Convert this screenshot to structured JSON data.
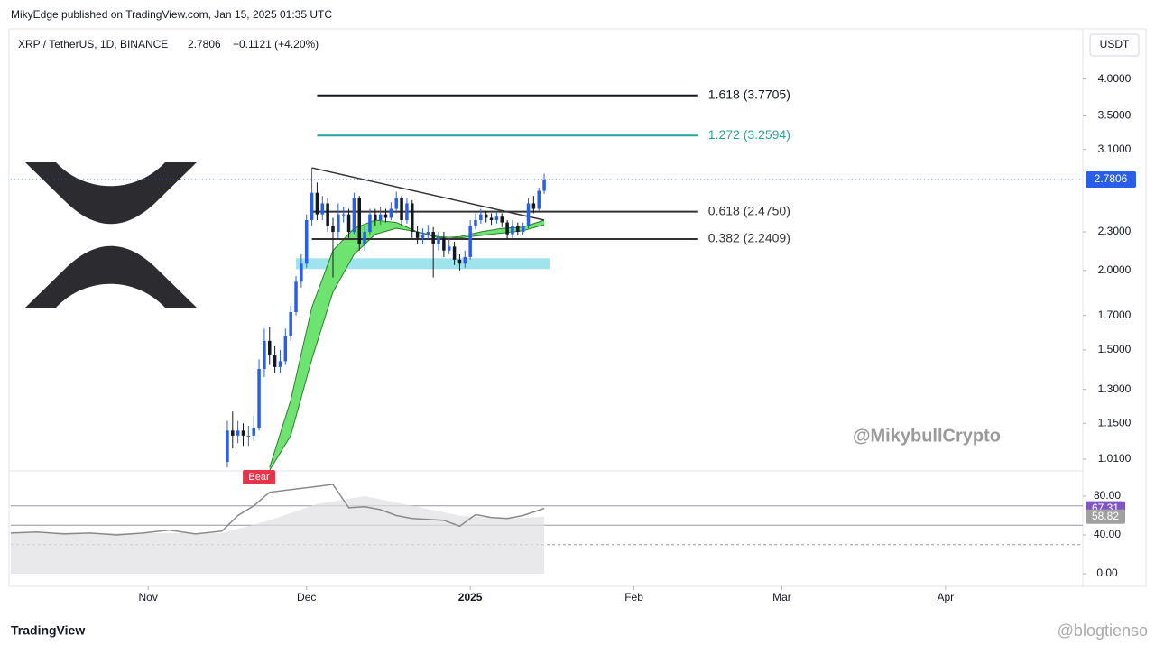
{
  "header": {
    "published": "MikyEdge published on TradingView.com, Jan 15, 2025 01:35 UTC",
    "symbol": "XRP / TetherUS, 1D, BINANCE",
    "change": "+0.1121 (+4.20%)",
    "currency": "USDT",
    "handle": "@MikybullCrypto",
    "brand": "TradingView",
    "watermark": "@blogtienso"
  },
  "chart_data": {
    "type": "candlestick",
    "log_scale": true,
    "categories": [
      null,
      null,
      null,
      null,
      null,
      null,
      null,
      null,
      null,
      null,
      null,
      null,
      null,
      null,
      null,
      null,
      null,
      null,
      null,
      null,
      null,
      null,
      null,
      null,
      null,
      null,
      null,
      null,
      null,
      null,
      null,
      null,
      null,
      null,
      null,
      null,
      null,
      null,
      null,
      null,
      null,
      null,
      null,
      null,
      null,
      null,
      null,
      null,
      null,
      null,
      null,
      null,
      null,
      null,
      null,
      null,
      null,
      null,
      null,
      null,
      null
    ],
    "open": [
      1.0,
      1.12,
      1.1,
      1.12,
      1.1,
      1.1,
      1.13,
      1.4,
      1.55,
      1.47,
      1.41,
      1.44,
      1.58,
      1.72,
      1.92,
      2.05,
      2.4,
      2.65,
      2.45,
      2.55,
      2.35,
      2.3,
      2.45,
      2.45,
      2.3,
      2.6,
      2.2,
      2.3,
      2.45,
      2.4,
      2.45,
      2.42,
      2.5,
      2.6,
      2.4,
      2.55,
      2.3,
      2.25,
      2.28,
      2.3,
      2.2,
      2.25,
      2.15,
      2.18,
      2.08,
      2.05,
      2.1,
      2.35,
      2.4,
      2.45,
      2.42,
      2.4,
      2.43,
      2.38,
      2.28,
      2.35,
      2.3,
      2.35,
      2.55,
      2.5,
      2.6685
    ],
    "high": [
      1.16,
      1.2,
      1.16,
      1.15,
      1.14,
      1.18,
      1.45,
      1.62,
      1.63,
      1.52,
      1.5,
      1.62,
      1.76,
      1.96,
      2.12,
      2.45,
      2.9,
      2.75,
      2.62,
      2.6,
      2.42,
      2.55,
      2.52,
      2.5,
      2.65,
      2.62,
      2.35,
      2.5,
      2.5,
      2.52,
      2.5,
      2.56,
      2.66,
      2.62,
      2.6,
      2.58,
      2.35,
      2.33,
      2.36,
      2.34,
      2.3,
      2.3,
      2.24,
      2.22,
      2.12,
      2.15,
      2.4,
      2.46,
      2.5,
      2.48,
      2.46,
      2.47,
      2.46,
      2.4,
      2.4,
      2.38,
      2.38,
      2.6,
      2.62,
      2.7,
      2.84
    ],
    "low": [
      0.98,
      1.05,
      1.07,
      1.06,
      1.06,
      1.08,
      1.12,
      1.36,
      1.42,
      1.38,
      1.38,
      1.42,
      1.55,
      1.7,
      1.88,
      2.02,
      2.35,
      2.4,
      2.4,
      2.3,
      1.95,
      2.25,
      2.38,
      2.25,
      2.28,
      2.15,
      2.15,
      2.28,
      2.35,
      2.36,
      2.38,
      2.4,
      2.46,
      2.35,
      2.37,
      2.25,
      2.2,
      2.2,
      2.24,
      1.95,
      2.15,
      2.1,
      2.12,
      2.04,
      2.0,
      2.02,
      2.08,
      2.32,
      2.37,
      2.38,
      2.36,
      2.37,
      2.34,
      2.24,
      2.25,
      2.27,
      2.27,
      2.33,
      2.46,
      2.48,
      2.64
    ],
    "close": [
      1.12,
      1.1,
      1.12,
      1.1,
      1.1,
      1.13,
      1.4,
      1.55,
      1.47,
      1.41,
      1.44,
      1.58,
      1.72,
      1.92,
      2.05,
      2.4,
      2.65,
      2.45,
      2.55,
      2.35,
      2.3,
      2.45,
      2.45,
      2.3,
      2.6,
      2.2,
      2.3,
      2.45,
      2.4,
      2.45,
      2.42,
      2.5,
      2.6,
      2.4,
      2.55,
      2.3,
      2.25,
      2.28,
      2.3,
      2.2,
      2.25,
      2.15,
      2.18,
      2.08,
      2.05,
      2.1,
      2.35,
      2.4,
      2.45,
      2.42,
      2.4,
      2.43,
      2.38,
      2.28,
      2.35,
      2.3,
      2.35,
      2.55,
      2.5,
      2.6685,
      2.7806
    ],
    "up_color": "#2a5ee8",
    "down_color": "#131722",
    "last_price": 2.7806,
    "xlim": [
      -41,
      162
    ],
    "xticks": [
      {
        "value": -15,
        "label": "Nov"
      },
      {
        "value": 15,
        "label": "Dec"
      },
      {
        "value": 46,
        "label": "2025"
      },
      {
        "value": 77,
        "label": "Feb"
      },
      {
        "value": 105,
        "label": "Mar"
      },
      {
        "value": 136,
        "label": "Apr"
      }
    ],
    "ylim": [
      0.968,
      4.75
    ],
    "yticks": [
      {
        "value": 4,
        "label": "4.0000"
      },
      {
        "value": 3.5,
        "label": "3.5000"
      },
      {
        "value": 3.1,
        "label": "3.1000"
      },
      {
        "value": 2.3,
        "label": "2.3000"
      },
      {
        "value": 2,
        "label": "2.0000"
      },
      {
        "value": 1.7,
        "label": "1.7000"
      },
      {
        "value": 1.5,
        "label": "1.5000"
      },
      {
        "value": 1.3,
        "label": "1.3000"
      },
      {
        "value": 1.15,
        "label": "1.1500"
      },
      {
        "value": 1.01,
        "label": "1.0100"
      }
    ],
    "fib_levels": [
      {
        "label": "1.618 (3.7705)",
        "price": 3.7705,
        "from": 17,
        "to": 89,
        "color": "#131722"
      },
      {
        "label": "1.272 (3.2594)",
        "price": 3.2594,
        "from": 17,
        "to": 89,
        "color": "#26a69a"
      },
      {
        "label": "0.618 (2.4750)",
        "price": 2.475,
        "from": 16,
        "to": 89,
        "color": "#333333"
      },
      {
        "label": "0.382 (2.2409)",
        "price": 2.2409,
        "from": 16,
        "to": 89,
        "color": "#333333"
      }
    ],
    "trendline": {
      "x": [
        16,
        60
      ],
      "y": [
        2.9,
        2.4
      ]
    },
    "zone": {
      "x": [
        13,
        61
      ],
      "y": [
        2.01,
        2.09
      ],
      "color": "#9fe3ec"
    },
    "ribbon": {
      "x": [
        8,
        12,
        16,
        20,
        24,
        28,
        32,
        36,
        40,
        44,
        48,
        52,
        56,
        60
      ],
      "fast": [
        0.98,
        1.25,
        1.75,
        2.15,
        2.33,
        2.4,
        2.38,
        2.3,
        2.25,
        2.26,
        2.3,
        2.33,
        2.34,
        2.4
      ],
      "slow": [
        0.97,
        1.1,
        1.45,
        1.85,
        2.12,
        2.28,
        2.33,
        2.3,
        2.26,
        2.25,
        2.27,
        2.29,
        2.31,
        2.36
      ],
      "color": "#6fe36f"
    },
    "signal": {
      "label": "Bear",
      "x": 6,
      "color": "#e8334a"
    },
    "rsi": {
      "x": [
        -41,
        -36,
        -31,
        -26,
        -21,
        -16,
        -11,
        -6,
        -1,
        2,
        5,
        8,
        11,
        14,
        17,
        20,
        23,
        26,
        29,
        32,
        35,
        38,
        41,
        44,
        47,
        50,
        53,
        56,
        60
      ],
      "values": [
        42,
        43,
        41,
        42,
        40,
        42,
        45,
        41,
        44,
        60,
        70,
        84,
        86,
        88,
        90,
        92,
        68,
        69,
        66,
        60,
        57,
        56,
        55,
        49,
        61,
        58,
        57,
        60,
        67.31
      ],
      "color": "#8a8a8a",
      "tag_color": "#7e57c2"
    },
    "rsi_ma": {
      "x": [
        -41,
        -21,
        -1,
        8,
        17,
        26,
        35,
        44,
        53,
        60
      ],
      "values": [
        43,
        42,
        42,
        55,
        72,
        80,
        70,
        60,
        57,
        58.82
      ],
      "color": "#e0e0e3",
      "tag_color": "#a0a0a0"
    },
    "rsi_ylim": [
      -13,
      106
    ],
    "rsi_yticks": [
      {
        "value": 80,
        "label": "80.00"
      },
      {
        "value": 40,
        "label": "40.00"
      },
      {
        "value": 0,
        "label": "0.00"
      }
    ],
    "rsi_levels": [
      {
        "value": 70,
        "dashed": false
      },
      {
        "value": 50,
        "dashed": false
      },
      {
        "value": 30,
        "dashed": true
      }
    ]
  }
}
